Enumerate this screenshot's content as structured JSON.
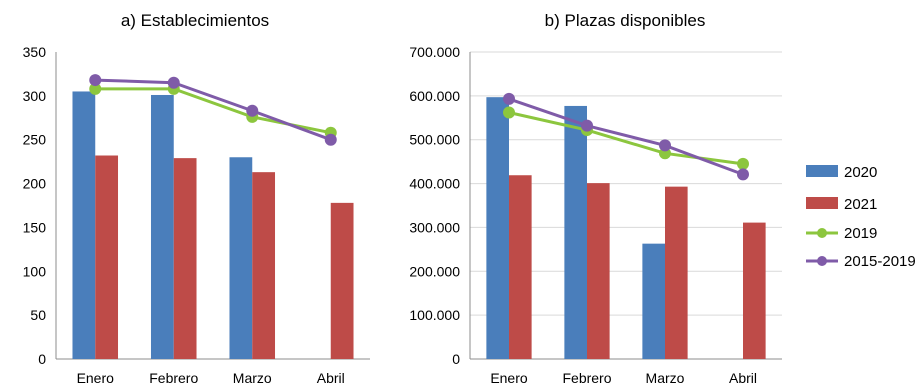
{
  "colors": {
    "s2020": "#4a7ebb",
    "s2021": "#be4b48",
    "s2019": "#8cc63e",
    "s2015_2019": "#7f5ba8",
    "grid": "#d9d9d9",
    "axis": "#8c8c8c"
  },
  "chart_data": [
    {
      "type": "bar",
      "title": "a) Establecimientos",
      "categories": [
        "Enero",
        "Febrero",
        "Marzo",
        "Abril"
      ],
      "ylim": [
        0,
        350
      ],
      "yticks": [
        0,
        50,
        100,
        150,
        200,
        250,
        300,
        350
      ],
      "ytick_labels": [
        "0",
        "50",
        "100",
        "150",
        "200",
        "250",
        "300",
        "350"
      ],
      "grid": false,
      "series": [
        {
          "name": "2020",
          "kind": "bar",
          "values": [
            305,
            301,
            230,
            null
          ]
        },
        {
          "name": "2021",
          "kind": "bar",
          "values": [
            232,
            229,
            213,
            178
          ]
        },
        {
          "name": "2019",
          "kind": "line",
          "values": [
            308,
            308,
            276,
            258
          ]
        },
        {
          "name": "2015-2019",
          "kind": "line",
          "values": [
            318,
            315,
            283,
            250
          ]
        }
      ]
    },
    {
      "type": "bar",
      "title": "b) Plazas disponibles",
      "categories": [
        "Enero",
        "Febrero",
        "Marzo",
        "Abril"
      ],
      "ylim": [
        0,
        700000
      ],
      "yticks": [
        0,
        100000,
        200000,
        300000,
        400000,
        500000,
        600000,
        700000
      ],
      "ytick_labels": [
        "0",
        "100.000",
        "200.000",
        "300.000",
        "400.000",
        "500.000",
        "600.000",
        "700.000"
      ],
      "grid": true,
      "series": [
        {
          "name": "2020",
          "kind": "bar",
          "values": [
            597000,
            577000,
            263000,
            null
          ]
        },
        {
          "name": "2021",
          "kind": "bar",
          "values": [
            419000,
            401000,
            393000,
            311000
          ]
        },
        {
          "name": "2019",
          "kind": "line",
          "values": [
            562000,
            522000,
            469000,
            445000
          ]
        },
        {
          "name": "2015-2019",
          "kind": "line",
          "values": [
            593000,
            532000,
            487000,
            421000
          ]
        }
      ]
    }
  ],
  "legend": {
    "position": "right",
    "items": [
      {
        "label": "2020",
        "kind": "bar"
      },
      {
        "label": "2021",
        "kind": "bar"
      },
      {
        "label": "2019",
        "kind": "line"
      },
      {
        "label": "2015-2019",
        "kind": "line"
      }
    ]
  }
}
